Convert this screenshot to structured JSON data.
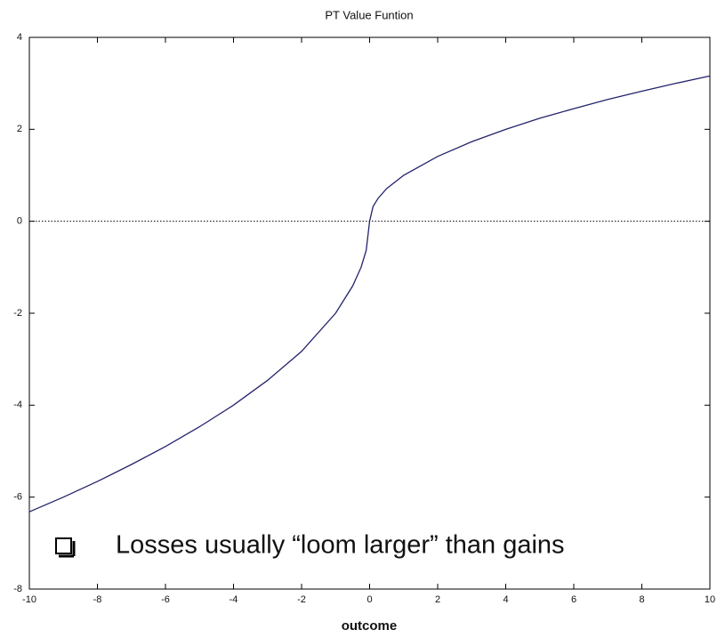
{
  "chart_data": {
    "type": "line",
    "title": "PT Value Funtion",
    "x_label": "outcome",
    "annotation": "Losses usually “loom larger” than gains",
    "x": [
      -10,
      -9,
      -8,
      -7,
      -6,
      -5,
      -4,
      -3,
      -2,
      -1,
      -0.5,
      -0.25,
      -0.1,
      0,
      0.1,
      0.25,
      0.5,
      1,
      2,
      3,
      4,
      5,
      6,
      7,
      8,
      9,
      10
    ],
    "series": [
      {
        "color": "#23236b",
        "values": [
          -6.32,
          -6,
          -5.66,
          -5.29,
          -4.9,
          -4.47,
          -4,
          -3.46,
          -2.83,
          -2,
          -1.41,
          -1,
          -0.63,
          0,
          0.32,
          0.5,
          0.71,
          1,
          1.41,
          1.73,
          2,
          2.24,
          2.45,
          2.65,
          2.83,
          3,
          3.16
        ]
      }
    ],
    "xlim": [
      -10,
      10
    ],
    "xticks": [
      -10,
      -8,
      -6,
      -4,
      -2,
      0,
      2,
      4,
      6,
      8,
      10
    ],
    "ylim": [
      -8,
      4
    ],
    "yticks": [
      -8,
      -6,
      -4,
      -2,
      0,
      2,
      4
    ],
    "reference_line": 0,
    "annotation_color": "#1f5fa6"
  }
}
